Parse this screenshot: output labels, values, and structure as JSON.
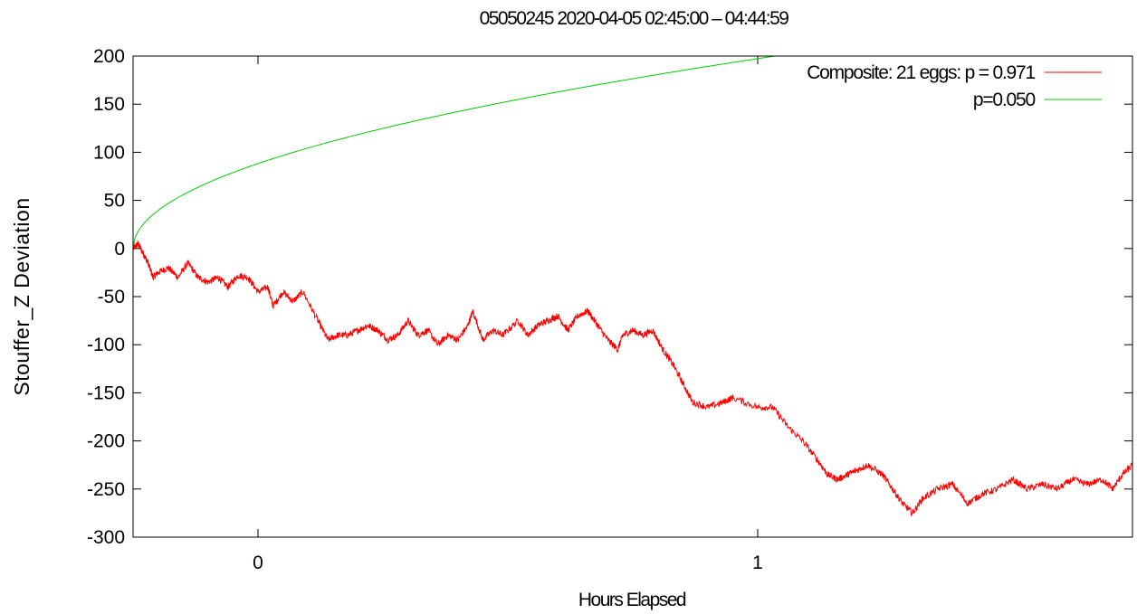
{
  "chart_data": {
    "type": "line",
    "title": "05050245 2020-04-05 02:45:00 – 04:44:59",
    "xlabel": "Hours Elapsed",
    "ylabel": "Stouffer_Z Deviation",
    "xlim": [
      -0.25,
      1.75
    ],
    "ylim": [
      -300,
      200
    ],
    "xticks": [
      0,
      1
    ],
    "yticks": [
      200,
      150,
      100,
      50,
      0,
      -50,
      -100,
      -150,
      -200,
      -250,
      -300
    ],
    "grid": false,
    "legend_position": "top-right",
    "series": [
      {
        "name": "Composite: 21 eggs: p = 0.971",
        "color": "#ff0000",
        "points": [
          [
            -0.25,
            0
          ],
          [
            -0.24,
            5
          ],
          [
            -0.23,
            -5
          ],
          [
            -0.22,
            -15
          ],
          [
            -0.21,
            -30
          ],
          [
            -0.2,
            -25
          ],
          [
            -0.18,
            -20
          ],
          [
            -0.16,
            -30
          ],
          [
            -0.14,
            -15
          ],
          [
            -0.12,
            -30
          ],
          [
            -0.1,
            -35
          ],
          [
            -0.08,
            -30
          ],
          [
            -0.06,
            -40
          ],
          [
            -0.04,
            -28
          ],
          [
            -0.02,
            -30
          ],
          [
            0.0,
            -45
          ],
          [
            0.02,
            -40
          ],
          [
            0.03,
            -60
          ],
          [
            0.05,
            -45
          ],
          [
            0.07,
            -55
          ],
          [
            0.09,
            -45
          ],
          [
            0.12,
            -75
          ],
          [
            0.14,
            -95
          ],
          [
            0.16,
            -90
          ],
          [
            0.18,
            -90
          ],
          [
            0.2,
            -85
          ],
          [
            0.22,
            -80
          ],
          [
            0.24,
            -85
          ],
          [
            0.26,
            -95
          ],
          [
            0.28,
            -90
          ],
          [
            0.3,
            -75
          ],
          [
            0.32,
            -90
          ],
          [
            0.34,
            -85
          ],
          [
            0.36,
            -100
          ],
          [
            0.38,
            -90
          ],
          [
            0.4,
            -95
          ],
          [
            0.42,
            -80
          ],
          [
            0.43,
            -65
          ],
          [
            0.45,
            -95
          ],
          [
            0.47,
            -85
          ],
          [
            0.49,
            -90
          ],
          [
            0.52,
            -75
          ],
          [
            0.54,
            -90
          ],
          [
            0.56,
            -80
          ],
          [
            0.58,
            -75
          ],
          [
            0.6,
            -70
          ],
          [
            0.62,
            -85
          ],
          [
            0.64,
            -70
          ],
          [
            0.66,
            -65
          ],
          [
            0.68,
            -80
          ],
          [
            0.7,
            -95
          ],
          [
            0.72,
            -105
          ],
          [
            0.73,
            -90
          ],
          [
            0.75,
            -85
          ],
          [
            0.77,
            -90
          ],
          [
            0.79,
            -85
          ],
          [
            0.81,
            -105
          ],
          [
            0.83,
            -120
          ],
          [
            0.85,
            -140
          ],
          [
            0.87,
            -160
          ],
          [
            0.9,
            -165
          ],
          [
            0.93,
            -160
          ],
          [
            0.95,
            -155
          ],
          [
            1.0,
            -165
          ],
          [
            1.03,
            -165
          ],
          [
            1.06,
            -185
          ],
          [
            1.09,
            -200
          ],
          [
            1.12,
            -220
          ],
          [
            1.14,
            -235
          ],
          [
            1.16,
            -240
          ],
          [
            1.18,
            -235
          ],
          [
            1.2,
            -230
          ],
          [
            1.22,
            -225
          ],
          [
            1.25,
            -235
          ],
          [
            1.27,
            -250
          ],
          [
            1.29,
            -265
          ],
          [
            1.31,
            -275
          ],
          [
            1.33,
            -260
          ],
          [
            1.36,
            -250
          ],
          [
            1.39,
            -245
          ],
          [
            1.42,
            -265
          ],
          [
            1.45,
            -255
          ],
          [
            1.48,
            -250
          ],
          [
            1.51,
            -240
          ],
          [
            1.54,
            -250
          ],
          [
            1.57,
            -245
          ],
          [
            1.6,
            -250
          ],
          [
            1.63,
            -240
          ],
          [
            1.66,
            -245
          ],
          [
            1.69,
            -240
          ],
          [
            1.71,
            -250
          ],
          [
            1.73,
            -235
          ],
          [
            1.75,
            -225
          ]
        ]
      },
      {
        "name": "p=0.050",
        "color": "#00cc00",
        "function": "1.645*sqrt(N)",
        "points": [
          [
            -0.25,
            0
          ],
          [
            -0.2,
            39.5
          ],
          [
            -0.1,
            68.4
          ],
          [
            0.0,
            88.3
          ],
          [
            0.1,
            104.5
          ],
          [
            0.2,
            118.5
          ],
          [
            0.3,
            131.0
          ],
          [
            0.4,
            142.5
          ],
          [
            0.5,
            153.0
          ],
          [
            0.6,
            162.9
          ],
          [
            0.7,
            172.2
          ],
          [
            0.8,
            180.9
          ],
          [
            0.9,
            189.3
          ],
          [
            1.0,
            197.3
          ]
        ]
      }
    ]
  }
}
